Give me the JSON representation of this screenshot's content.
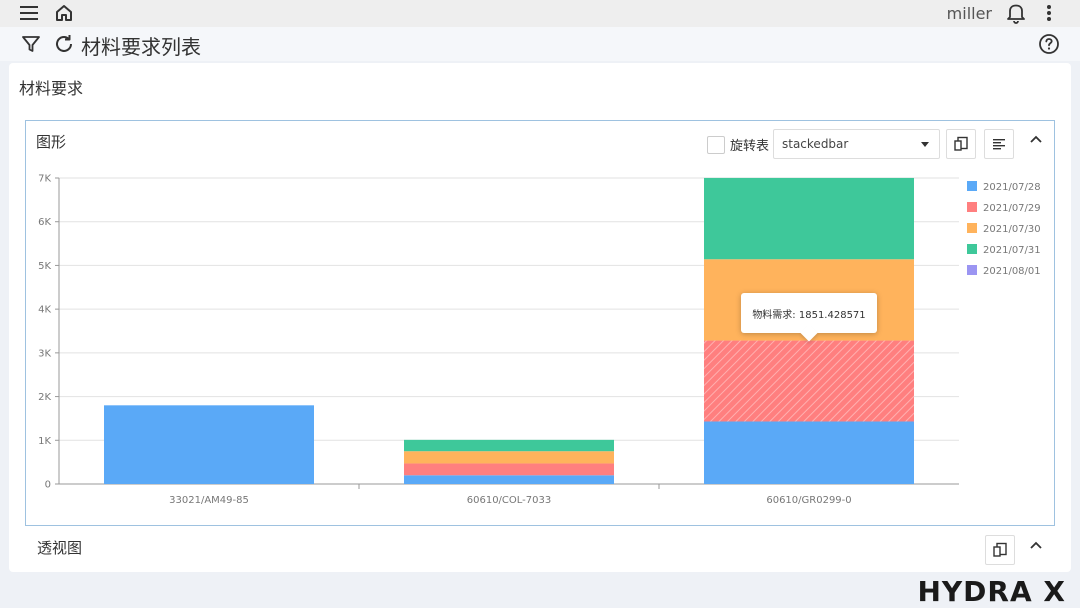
{
  "topbar": {
    "username": "miller"
  },
  "subbar": {
    "title": "材料要求列表"
  },
  "card": {
    "title": "材料要求"
  },
  "chart_panel": {
    "title": "图形",
    "rotate_label": "旋转表",
    "chart_type_select": "stackedbar"
  },
  "pivot_panel": {
    "title": "透视图"
  },
  "tooltip": {
    "text": "物料需求: 1851.428571"
  },
  "brand": "HYDRA X",
  "colors": {
    "series_2021_07_28": "#5aa9f7",
    "series_2021_07_29": "#ff7f7f",
    "series_2021_07_30": "#ffb35c",
    "series_2021_07_31": "#3ec89a",
    "series_2021_08_01": "#9b95f2",
    "panel_border": "#9ec2e0"
  },
  "chart_data": {
    "type": "bar",
    "stacked": true,
    "categories": [
      "33021/AM49-85",
      "60610/COL-7033",
      "60610/GR0299-0"
    ],
    "ylim": [
      0,
      7000
    ],
    "yticks": [
      "0",
      "1K",
      "2K",
      "3K",
      "4K",
      "5K",
      "6K",
      "7K"
    ],
    "grid": true,
    "legend_position": "right",
    "series": [
      {
        "name": "2021/07/28",
        "values": [
          1800,
          200,
          1430
        ]
      },
      {
        "name": "2021/07/29",
        "values": [
          0,
          270,
          1851.428571
        ]
      },
      {
        "name": "2021/07/30",
        "values": [
          0,
          280,
          1860
        ]
      },
      {
        "name": "2021/07/31",
        "values": [
          0,
          260,
          1860
        ]
      },
      {
        "name": "2021/08/01",
        "values": [
          0,
          0,
          0
        ]
      }
    ],
    "highlighted": {
      "category": "60610/GR0299-0",
      "series": "2021/07/29"
    }
  }
}
